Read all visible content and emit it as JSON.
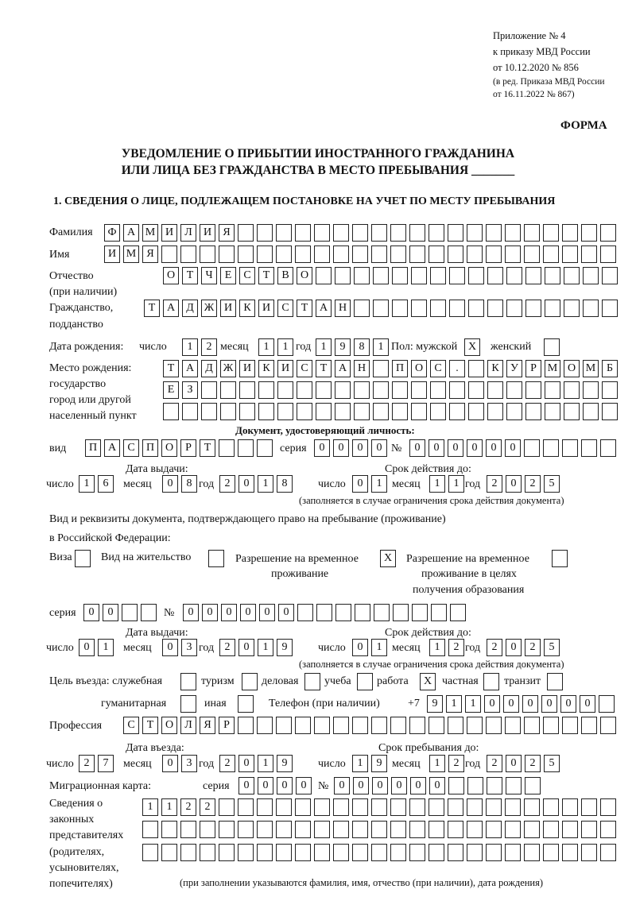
{
  "header": {
    "appendix_line1": "Приложение № 4",
    "appendix_line2": "к приказу МВД России",
    "appendix_line3": "от 10.12.2020 № 856",
    "revision_line1": "(в ред. Приказа МВД России",
    "revision_line2": "от 16.11.2022 № 867)",
    "form_label": "ФОРМА",
    "title_line1": "УВЕДОМЛЕНИЕ О ПРИБЫТИИ ИНОСТРАННОГО ГРАЖДАНИНА",
    "title_line2": "ИЛИ ЛИЦА БЕЗ ГРАЖДАНСТВА В МЕСТО ПРЕБЫВАНИЯ _______",
    "section1": "1. СВЕДЕНИЯ О ЛИЦЕ, ПОДЛЕЖАЩЕМ ПОСТАНОВКЕ НА УЧЕТ ПО МЕСТУ ПРЕБЫВАНИЯ"
  },
  "check_mark": "X",
  "labels": {
    "surname": "Фамилия",
    "name": "Имя",
    "patronymic": "Отчество",
    "patronymic_note": "(при наличии)",
    "citizenship": "Гражданство,",
    "citizenship2": "подданство",
    "birth_date": "Дата рождения:",
    "day": "число",
    "month": "месяц",
    "year": "год",
    "sex": "Пол: мужской",
    "female": "женский",
    "birthplace1": "Место рождения:",
    "birthplace2": "государство",
    "birthplace3": "город или другой",
    "birthplace4": "населенный пункт",
    "id_doc": "Документ, удостоверяющий личность:",
    "kind": "вид",
    "series": "серия",
    "number": "№",
    "issue_date": "Дата выдачи:",
    "valid_until": "Срок действия до:",
    "validity_note": "(заполняется в случае ограничения срока действия документа)",
    "stay_doc1": "Вид и реквизиты документа, подтверждающего право на пребывание (проживание)",
    "stay_doc2": "в Российской Федерации:",
    "visa": "Виза",
    "residence": "Вид на жительство",
    "trp1": "Разрешение на временное",
    "trp2": "проживание",
    "trp_edu1": "Разрешение на временное",
    "trp_edu2": "проживание в целях",
    "trp_edu3": "получения образования",
    "purpose": "Цель въезда: служебная",
    "tourism": "туризм",
    "business": "деловая",
    "study": "учеба",
    "work": "работа",
    "private": "частная",
    "transit": "транзит",
    "humanitarian": "гуманитарная",
    "other": "иная",
    "phone": "Телефон (при наличии)",
    "phone_prefix": "+7",
    "profession": "Профессия",
    "entry_date": "Дата въезда:",
    "stay_until": "Срок пребывания до:",
    "migration_card": "Миграционная карта:",
    "reps1": "Сведения о",
    "reps2": "законных",
    "reps3": "представителях",
    "reps4": "(родителях,",
    "reps5": "усыновителях,",
    "reps6": "попечителях)",
    "reps_note": "(при заполнении указываются фамилия, имя, отчество (при наличии), дата рождения)"
  },
  "person": {
    "surname": "ФАМИЛИЯ",
    "name": "ИМЯ",
    "patronymic": "ОТЧЕСТВО",
    "citizenship": "ТАДЖИКИСТАН",
    "birth_day": "12",
    "birth_month": "11",
    "birth_year": "1981",
    "sex_male": true,
    "sex_female": false,
    "birthplace_line1": "ТАДЖИКИСТАН ПОС. КУРМОМБ",
    "birthplace_line2": "ЕЗ",
    "birthplace_line3": ""
  },
  "id_document": {
    "kind": "ПАСПОРТ",
    "series": "0000",
    "number": "000000",
    "issue_day": "16",
    "issue_month": "08",
    "issue_year": "2018",
    "valid_day": "01",
    "valid_month": "11",
    "valid_year": "2025"
  },
  "stay_document": {
    "visa": false,
    "residence_permit": false,
    "temporary_residence": true,
    "temporary_residence_education": false,
    "series": "00",
    "number": "000000",
    "issue_day": "01",
    "issue_month": "03",
    "issue_year": "2019",
    "valid_day": "01",
    "valid_month": "12",
    "valid_year": "2025"
  },
  "purpose": {
    "official": false,
    "tourism": false,
    "business": false,
    "study": false,
    "work": true,
    "private": false,
    "transit": false,
    "humanitarian": false,
    "other": false
  },
  "phone": "911000000",
  "profession": "СТОЛЯР",
  "entry": {
    "entry_day": "27",
    "entry_month": "03",
    "entry_year": "2019",
    "stay_day": "19",
    "stay_month": "12",
    "stay_year": "2025"
  },
  "migration_card": {
    "series": "0000",
    "number": "000000"
  },
  "representatives": {
    "line1": "1122",
    "line2": "",
    "line3": ""
  }
}
